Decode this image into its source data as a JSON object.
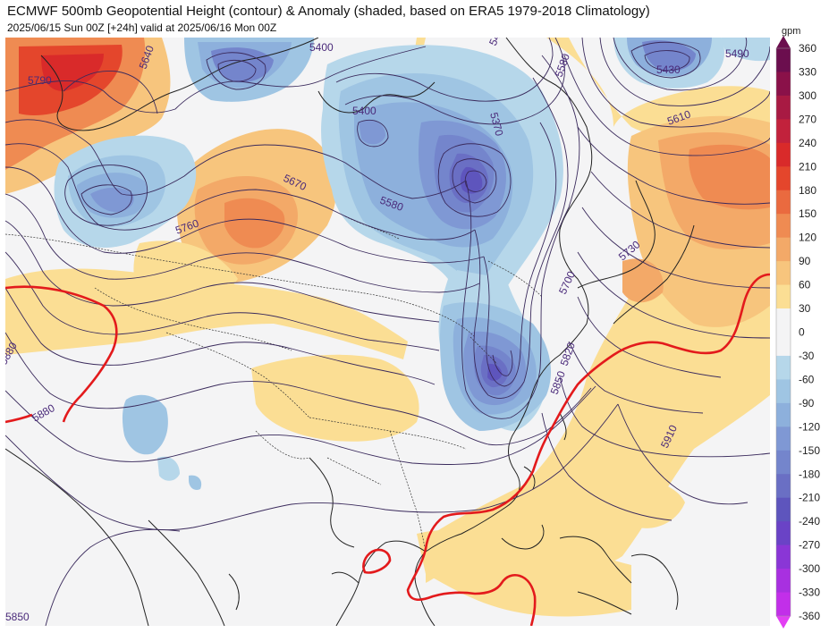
{
  "header": {
    "title": "ECMWF 500mb Geopotential Height (contour) & Anomaly (shaded, based on ERA5 1979-2018 Climatology)",
    "subtitle": "2025/06/15 Sun 00Z [+24h] valid at 2025/06/16 Mon 00Z"
  },
  "colors": {
    "ocean": "#f4f4f5",
    "contour": "#3a2a5c",
    "coast": "#222222",
    "contour_5880": "#e31a1c",
    "label": "#4a2a7a"
  },
  "contour_labels": [
    "5640",
    "5790",
    "5400",
    "5490",
    "5580",
    "5430",
    "5490",
    "5400",
    "5370",
    "5610",
    "5670",
    "5760",
    "5580",
    "5730",
    "5700",
    "5820",
    "5850",
    "5910",
    "5880",
    "5880",
    "5850",
    "5910"
  ],
  "colorbar": {
    "unit": "gpm",
    "levels": [
      "360",
      "330",
      "300",
      "270",
      "240",
      "210",
      "180",
      "150",
      "120",
      "90",
      "60",
      "30",
      "0",
      "-30",
      "-60",
      "-90",
      "-120",
      "-150",
      "-180",
      "-210",
      "-240",
      "-270",
      "-300",
      "-330",
      "-360"
    ],
    "bins": [
      "#6b0e4e",
      "#8a1149",
      "#a81a43",
      "#c2223c",
      "#d92a2a",
      "#e4462c",
      "#ea6a3f",
      "#ef8b52",
      "#f3a968",
      "#f7c57d",
      "#fbde94",
      "#f4f4f5",
      "#f4f4f5",
      "#b6d7ea",
      "#9fc5e3",
      "#8db0dc",
      "#7f98d4",
      "#7485cc",
      "#6a6fc4",
      "#5e55bd",
      "#6a43c6",
      "#8a36d6",
      "#a830e0",
      "#c22fe9",
      "#e23ff3"
    ]
  }
}
